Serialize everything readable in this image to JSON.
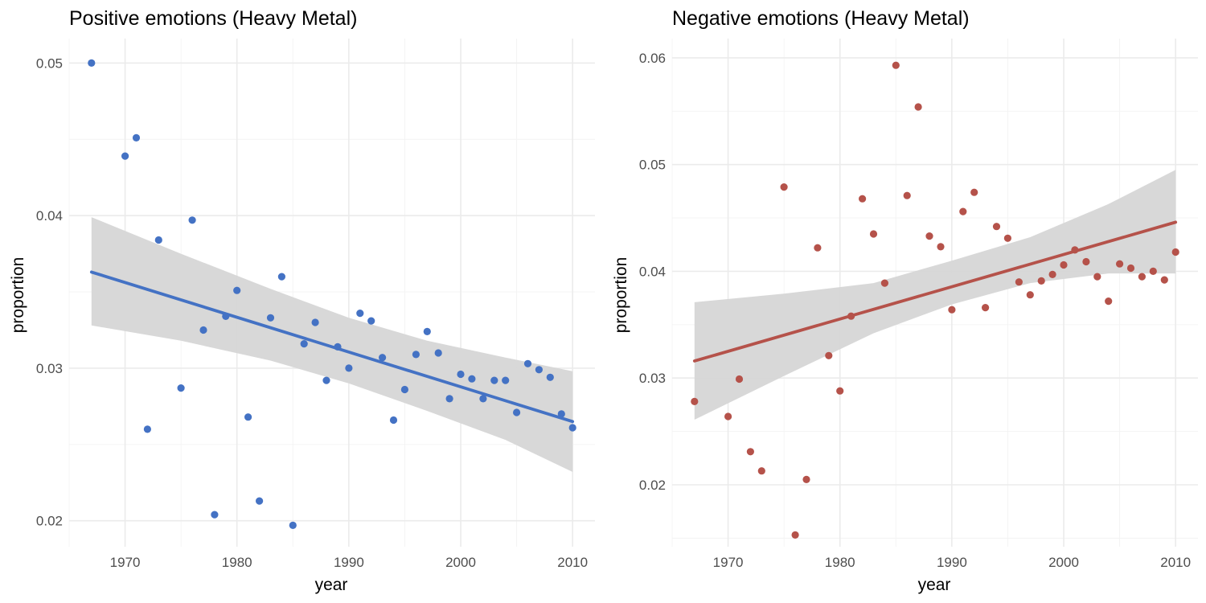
{
  "chart_data": [
    {
      "type": "scatter",
      "title": "Positive emotions (Heavy Metal)",
      "xlabel": "year",
      "ylabel": "proportion",
      "xlim": [
        1965,
        2012
      ],
      "ylim": [
        0.0183,
        0.0516
      ],
      "x_ticks": [
        1970,
        1980,
        1990,
        2000,
        2010
      ],
      "x_tick_labels": [
        "1970",
        "1980",
        "1990",
        "2000",
        "2010"
      ],
      "y_ticks": [
        0.02,
        0.03,
        0.04,
        0.05
      ],
      "y_tick_labels": [
        "0.02",
        "0.03",
        "0.04",
        "0.05"
      ],
      "grid": true,
      "legend": "none",
      "point_color": "#4472c4",
      "line_color": "#4472c4",
      "band_color": "#d6d6d6",
      "points": [
        [
          1967,
          0.05
        ],
        [
          1970,
          0.0439
        ],
        [
          1971,
          0.0451
        ],
        [
          1972,
          0.026
        ],
        [
          1973,
          0.0384
        ],
        [
          1975,
          0.0287
        ],
        [
          1976,
          0.0397
        ],
        [
          1977,
          0.0325
        ],
        [
          1978,
          0.0204
        ],
        [
          1979,
          0.0334
        ],
        [
          1980,
          0.0351
        ],
        [
          1981,
          0.0268
        ],
        [
          1982,
          0.0213
        ],
        [
          1983,
          0.0333
        ],
        [
          1984,
          0.036
        ],
        [
          1985,
          0.0197
        ],
        [
          1986,
          0.0316
        ],
        [
          1987,
          0.033
        ],
        [
          1988,
          0.0292
        ],
        [
          1989,
          0.0314
        ],
        [
          1990,
          0.03
        ],
        [
          1991,
          0.0336
        ],
        [
          1992,
          0.0331
        ],
        [
          1993,
          0.0307
        ],
        [
          1994,
          0.0266
        ],
        [
          1995,
          0.0286
        ],
        [
          1996,
          0.0309
        ],
        [
          1997,
          0.0324
        ],
        [
          1998,
          0.031
        ],
        [
          1999,
          0.028
        ],
        [
          2000,
          0.0296
        ],
        [
          2001,
          0.0293
        ],
        [
          2002,
          0.028
        ],
        [
          2003,
          0.0292
        ],
        [
          2004,
          0.0292
        ],
        [
          2005,
          0.0271
        ],
        [
          2006,
          0.0303
        ],
        [
          2007,
          0.0299
        ],
        [
          2008,
          0.0294
        ],
        [
          2009,
          0.027
        ],
        [
          2010,
          0.0261
        ]
      ],
      "fit": {
        "x": [
          1967,
          2010
        ],
        "y": [
          0.0363,
          0.0265
        ]
      },
      "band": {
        "x": [
          1967,
          1975,
          1983,
          1990,
          1997,
          2004,
          2010
        ],
        "lower": [
          0.0328,
          0.0318,
          0.0305,
          0.029,
          0.0272,
          0.0253,
          0.0232
        ],
        "upper": [
          0.0399,
          0.0375,
          0.0352,
          0.0333,
          0.0318,
          0.0307,
          0.0298
        ]
      }
    },
    {
      "type": "scatter",
      "title": "Negative emotions (Heavy Metal)",
      "xlabel": "year",
      "ylabel": "proportion",
      "xlim": [
        1965,
        2012
      ],
      "ylim": [
        0.0142,
        0.0618
      ],
      "x_ticks": [
        1970,
        1980,
        1990,
        2000,
        2010
      ],
      "x_tick_labels": [
        "1970",
        "1980",
        "1990",
        "2000",
        "2010"
      ],
      "y_ticks": [
        0.02,
        0.03,
        0.04,
        0.05,
        0.06
      ],
      "y_tick_labels": [
        "0.02",
        "0.03",
        "0.04",
        "0.05",
        "0.06"
      ],
      "grid": true,
      "legend": "none",
      "point_color": "#b5524a",
      "line_color": "#b5524a",
      "band_color": "#d6d6d6",
      "points": [
        [
          1967,
          0.0278
        ],
        [
          1970,
          0.0264
        ],
        [
          1971,
          0.0299
        ],
        [
          1972,
          0.0231
        ],
        [
          1973,
          0.0213
        ],
        [
          1975,
          0.0479
        ],
        [
          1976,
          0.0153
        ],
        [
          1977,
          0.0205
        ],
        [
          1978,
          0.0422
        ],
        [
          1979,
          0.0321
        ],
        [
          1980,
          0.0288
        ],
        [
          1981,
          0.0358
        ],
        [
          1982,
          0.0468
        ],
        [
          1983,
          0.0435
        ],
        [
          1984,
          0.0389
        ],
        [
          1985,
          0.0593
        ],
        [
          1986,
          0.0471
        ],
        [
          1987,
          0.0554
        ],
        [
          1988,
          0.0433
        ],
        [
          1989,
          0.0423
        ],
        [
          1990,
          0.0364
        ],
        [
          1991,
          0.0456
        ],
        [
          1992,
          0.0474
        ],
        [
          1993,
          0.0366
        ],
        [
          1994,
          0.0442
        ],
        [
          1995,
          0.0431
        ],
        [
          1996,
          0.039
        ],
        [
          1997,
          0.0378
        ],
        [
          1998,
          0.0391
        ],
        [
          1999,
          0.0397
        ],
        [
          2000,
          0.0406
        ],
        [
          2001,
          0.042
        ],
        [
          2002,
          0.0409
        ],
        [
          2003,
          0.0395
        ],
        [
          2004,
          0.0372
        ],
        [
          2005,
          0.0407
        ],
        [
          2006,
          0.0403
        ],
        [
          2007,
          0.0395
        ],
        [
          2008,
          0.04
        ],
        [
          2009,
          0.0392
        ],
        [
          2010,
          0.0418
        ]
      ],
      "fit": {
        "x": [
          1967,
          2010
        ],
        "y": [
          0.0316,
          0.0446
        ]
      },
      "band": {
        "x": [
          1967,
          1975,
          1983,
          1990,
          1997,
          2004,
          2010
        ],
        "lower": [
          0.0261,
          0.0302,
          0.0342,
          0.0369,
          0.0389,
          0.0398,
          0.0398
        ],
        "upper": [
          0.0371,
          0.0379,
          0.0389,
          0.041,
          0.0432,
          0.0463,
          0.0495
        ]
      }
    }
  ]
}
